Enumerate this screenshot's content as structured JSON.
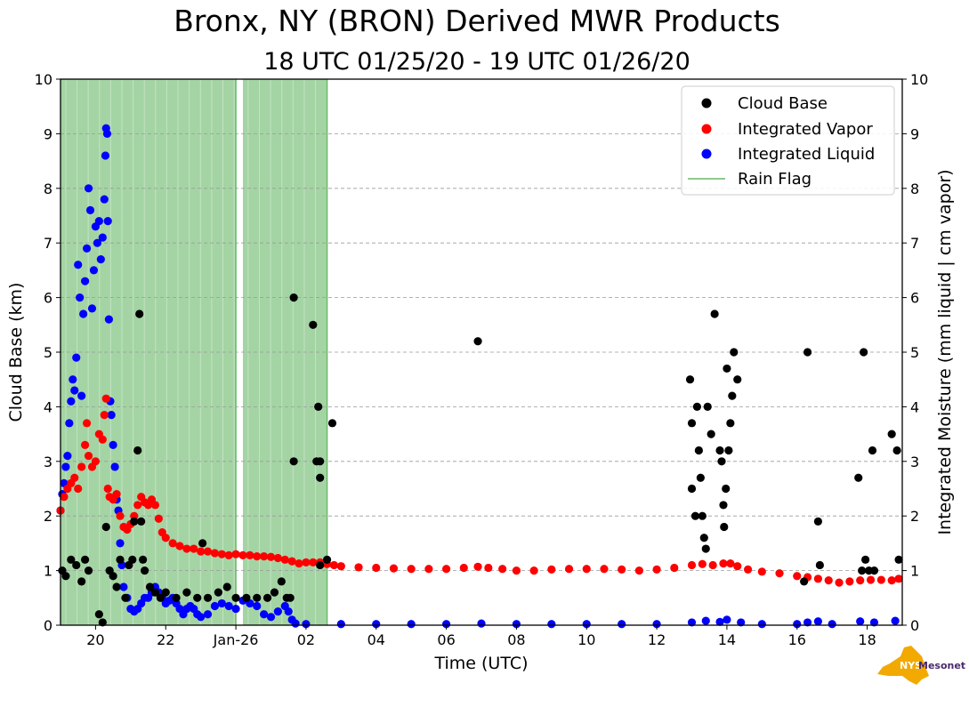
{
  "header": {
    "title": "Bronx, NY (BRON) Derived MWR Products",
    "subtitle": "18 UTC 01/25/20 - 19 UTC 01/26/20"
  },
  "logo": {
    "text_left": "NYS",
    "text_right": "Mesonet",
    "icon": "new-york-state-icon"
  },
  "chart_data": {
    "type": "scatter",
    "xlabel": "Time (UTC)",
    "ylabel": "Cloud Base (km)",
    "ylabel_right": "Integrated Moisture (mm liquid | cm vapor)",
    "x_range_hours": [
      19,
      43
    ],
    "xlim": [
      "2020-01-25 19:00",
      "2020-01-26 19:00"
    ],
    "ylim": [
      0,
      10
    ],
    "ylim_right": [
      0,
      10
    ],
    "grid": "horizontal dashed",
    "legend_position": "top-right",
    "xticks": [
      {
        "h": 20,
        "label": "20"
      },
      {
        "h": 22,
        "label": "22"
      },
      {
        "h": 24,
        "label": "Jan-26"
      },
      {
        "h": 26,
        "label": "02"
      },
      {
        "h": 28,
        "label": "04"
      },
      {
        "h": 30,
        "label": "06"
      },
      {
        "h": 32,
        "label": "08"
      },
      {
        "h": 34,
        "label": "10"
      },
      {
        "h": 36,
        "label": "12"
      },
      {
        "h": 38,
        "label": "14"
      },
      {
        "h": 40,
        "label": "16"
      },
      {
        "h": 42,
        "label": "18"
      }
    ],
    "yticks": [
      "0",
      "1",
      "2",
      "3",
      "4",
      "5",
      "6",
      "7",
      "8",
      "9",
      "10"
    ],
    "rain_flag_intervals": [
      [
        19.0,
        24.0
      ],
      [
        24.2,
        26.6
      ]
    ],
    "series": [
      {
        "name": "Cloud Base",
        "color": "#000000",
        "marker": "circle",
        "points": [
          [
            25.65,
            6.0
          ],
          [
            25.65,
            3.0
          ],
          [
            26.2,
            5.5
          ],
          [
            26.3,
            3.0
          ],
          [
            26.4,
            3.0
          ],
          [
            26.35,
            4.0
          ],
          [
            26.4,
            2.7
          ],
          [
            26.75,
            3.7
          ],
          [
            26.6,
            1.2
          ],
          [
            26.4,
            1.1
          ],
          [
            30.9,
            5.2
          ],
          [
            36.95,
            4.5
          ],
          [
            37.0,
            3.7
          ],
          [
            37.0,
            2.5
          ],
          [
            37.1,
            2.0
          ],
          [
            37.15,
            4.0
          ],
          [
            37.2,
            3.2
          ],
          [
            37.25,
            2.7
          ],
          [
            37.3,
            2.0
          ],
          [
            37.35,
            1.6
          ],
          [
            37.4,
            1.4
          ],
          [
            37.45,
            4.0
          ],
          [
            37.55,
            3.5
          ],
          [
            37.65,
            5.7
          ],
          [
            37.8,
            3.2
          ],
          [
            37.85,
            3.0
          ],
          [
            37.9,
            2.2
          ],
          [
            37.92,
            1.8
          ],
          [
            37.97,
            2.5
          ],
          [
            38.0,
            4.7
          ],
          [
            38.05,
            3.2
          ],
          [
            38.1,
            3.7
          ],
          [
            38.15,
            4.2
          ],
          [
            38.2,
            5.0
          ],
          [
            38.3,
            4.5
          ],
          [
            40.3,
            5.0
          ],
          [
            40.6,
            1.9
          ],
          [
            40.65,
            1.1
          ],
          [
            40.2,
            0.8
          ],
          [
            41.75,
            2.7
          ],
          [
            41.85,
            1.0
          ],
          [
            41.9,
            5.0
          ],
          [
            41.95,
            1.2
          ],
          [
            42.05,
            1.0
          ],
          [
            42.15,
            3.2
          ],
          [
            42.2,
            1.0
          ],
          [
            42.7,
            3.5
          ],
          [
            42.85,
            3.2
          ],
          [
            42.9,
            1.2
          ],
          [
            19.05,
            1.0
          ],
          [
            19.15,
            0.9
          ],
          [
            19.3,
            1.2
          ],
          [
            19.45,
            1.1
          ],
          [
            19.6,
            0.8
          ],
          [
            19.7,
            1.2
          ],
          [
            19.8,
            1.0
          ],
          [
            20.1,
            0.2
          ],
          [
            20.2,
            0.05
          ],
          [
            20.3,
            1.8
          ],
          [
            20.4,
            1.0
          ],
          [
            20.5,
            0.9
          ],
          [
            20.6,
            0.7
          ],
          [
            20.7,
            1.2
          ],
          [
            20.85,
            0.5
          ],
          [
            20.95,
            1.1
          ],
          [
            21.05,
            1.2
          ],
          [
            21.1,
            1.9
          ],
          [
            21.2,
            3.2
          ],
          [
            21.25,
            5.7
          ],
          [
            21.3,
            1.9
          ],
          [
            21.35,
            1.2
          ],
          [
            21.4,
            1.0
          ],
          [
            21.55,
            0.7
          ],
          [
            21.7,
            0.6
          ],
          [
            21.85,
            0.5
          ],
          [
            22.0,
            0.6
          ],
          [
            22.3,
            0.5
          ],
          [
            22.6,
            0.6
          ],
          [
            22.9,
            0.5
          ],
          [
            23.2,
            0.5
          ],
          [
            23.5,
            0.6
          ],
          [
            23.75,
            0.7
          ],
          [
            24.0,
            0.5
          ],
          [
            24.3,
            0.5
          ],
          [
            24.6,
            0.5
          ],
          [
            24.9,
            0.5
          ],
          [
            25.1,
            0.6
          ],
          [
            25.3,
            0.8
          ],
          [
            25.45,
            0.5
          ],
          [
            25.55,
            0.5
          ],
          [
            23.05,
            1.5
          ]
        ]
      },
      {
        "name": "Integrated Vapor",
        "color": "#ff0000",
        "marker": "circle",
        "points": [
          [
            19.0,
            2.1
          ],
          [
            19.1,
            2.35
          ],
          [
            19.2,
            2.5
          ],
          [
            19.3,
            2.6
          ],
          [
            19.4,
            2.7
          ],
          [
            19.5,
            2.5
          ],
          [
            19.6,
            2.9
          ],
          [
            19.7,
            3.3
          ],
          [
            19.75,
            3.7
          ],
          [
            19.8,
            3.1
          ],
          [
            19.9,
            2.9
          ],
          [
            20.0,
            3.0
          ],
          [
            20.1,
            3.5
          ],
          [
            20.2,
            3.4
          ],
          [
            20.25,
            3.85
          ],
          [
            20.3,
            4.15
          ],
          [
            20.35,
            2.5
          ],
          [
            20.4,
            2.35
          ],
          [
            20.5,
            2.3
          ],
          [
            20.6,
            2.4
          ],
          [
            20.7,
            2.0
          ],
          [
            20.8,
            1.8
          ],
          [
            20.9,
            1.75
          ],
          [
            21.0,
            1.85
          ],
          [
            21.1,
            2.0
          ],
          [
            21.2,
            2.2
          ],
          [
            21.3,
            2.35
          ],
          [
            21.4,
            2.25
          ],
          [
            21.5,
            2.2
          ],
          [
            21.6,
            2.3
          ],
          [
            21.7,
            2.2
          ],
          [
            21.8,
            1.95
          ],
          [
            21.9,
            1.7
          ],
          [
            22.0,
            1.6
          ],
          [
            22.2,
            1.5
          ],
          [
            22.4,
            1.45
          ],
          [
            22.6,
            1.4
          ],
          [
            22.8,
            1.4
          ],
          [
            23.0,
            1.35
          ],
          [
            23.2,
            1.35
          ],
          [
            23.4,
            1.32
          ],
          [
            23.6,
            1.3
          ],
          [
            23.8,
            1.28
          ],
          [
            24.0,
            1.3
          ],
          [
            24.2,
            1.28
          ],
          [
            24.4,
            1.28
          ],
          [
            24.6,
            1.26
          ],
          [
            24.8,
            1.26
          ],
          [
            25.0,
            1.25
          ],
          [
            25.2,
            1.23
          ],
          [
            25.4,
            1.2
          ],
          [
            25.6,
            1.17
          ],
          [
            25.8,
            1.13
          ],
          [
            26.0,
            1.15
          ],
          [
            26.2,
            1.15
          ],
          [
            26.4,
            1.15
          ],
          [
            26.6,
            1.12
          ],
          [
            26.8,
            1.1
          ],
          [
            27.0,
            1.08
          ],
          [
            27.5,
            1.06
          ],
          [
            28.0,
            1.05
          ],
          [
            28.5,
            1.04
          ],
          [
            29.0,
            1.03
          ],
          [
            29.5,
            1.03
          ],
          [
            30.0,
            1.03
          ],
          [
            30.5,
            1.05
          ],
          [
            30.9,
            1.07
          ],
          [
            31.2,
            1.05
          ],
          [
            31.6,
            1.03
          ],
          [
            32.0,
            1.0
          ],
          [
            32.5,
            1.0
          ],
          [
            33.0,
            1.02
          ],
          [
            33.5,
            1.03
          ],
          [
            34.0,
            1.03
          ],
          [
            34.5,
            1.03
          ],
          [
            35.0,
            1.02
          ],
          [
            35.5,
            1.0
          ],
          [
            36.0,
            1.02
          ],
          [
            36.5,
            1.05
          ],
          [
            37.0,
            1.1
          ],
          [
            37.3,
            1.12
          ],
          [
            37.6,
            1.1
          ],
          [
            37.9,
            1.13
          ],
          [
            38.1,
            1.13
          ],
          [
            38.3,
            1.08
          ],
          [
            38.6,
            1.02
          ],
          [
            39.0,
            0.98
          ],
          [
            39.5,
            0.95
          ],
          [
            40.0,
            0.9
          ],
          [
            40.3,
            0.88
          ],
          [
            40.6,
            0.85
          ],
          [
            40.9,
            0.82
          ],
          [
            41.2,
            0.78
          ],
          [
            41.5,
            0.8
          ],
          [
            41.8,
            0.82
          ],
          [
            42.1,
            0.83
          ],
          [
            42.4,
            0.83
          ],
          [
            42.7,
            0.82
          ],
          [
            42.9,
            0.85
          ]
        ]
      },
      {
        "name": "Integrated Liquid",
        "color": "#0000ff",
        "marker": "circle",
        "points": [
          [
            19.0,
            2.1
          ],
          [
            19.05,
            2.4
          ],
          [
            19.1,
            2.6
          ],
          [
            19.15,
            2.9
          ],
          [
            19.2,
            3.1
          ],
          [
            19.25,
            3.7
          ],
          [
            19.3,
            4.1
          ],
          [
            19.35,
            4.5
          ],
          [
            19.4,
            4.3
          ],
          [
            19.45,
            4.9
          ],
          [
            19.5,
            6.6
          ],
          [
            19.55,
            6.0
          ],
          [
            19.6,
            4.2
          ],
          [
            19.65,
            5.7
          ],
          [
            19.7,
            6.3
          ],
          [
            19.75,
            6.9
          ],
          [
            19.8,
            8.0
          ],
          [
            19.85,
            7.6
          ],
          [
            19.9,
            5.8
          ],
          [
            19.95,
            6.5
          ],
          [
            20.0,
            7.3
          ],
          [
            20.05,
            7.0
          ],
          [
            20.1,
            7.4
          ],
          [
            20.15,
            6.7
          ],
          [
            20.2,
            7.1
          ],
          [
            20.25,
            7.8
          ],
          [
            20.28,
            8.6
          ],
          [
            20.3,
            9.1
          ],
          [
            20.33,
            9.0
          ],
          [
            20.35,
            7.4
          ],
          [
            20.38,
            5.6
          ],
          [
            20.42,
            4.1
          ],
          [
            20.45,
            3.85
          ],
          [
            20.5,
            3.3
          ],
          [
            20.55,
            2.9
          ],
          [
            20.6,
            2.3
          ],
          [
            20.65,
            2.1
          ],
          [
            20.7,
            1.5
          ],
          [
            20.75,
            1.1
          ],
          [
            20.8,
            0.7
          ],
          [
            20.9,
            0.5
          ],
          [
            21.0,
            0.3
          ],
          [
            21.1,
            0.25
          ],
          [
            21.2,
            0.3
          ],
          [
            21.3,
            0.4
          ],
          [
            21.4,
            0.5
          ],
          [
            21.5,
            0.5
          ],
          [
            21.6,
            0.6
          ],
          [
            21.7,
            0.7
          ],
          [
            21.8,
            0.6
          ],
          [
            21.9,
            0.5
          ],
          [
            22.0,
            0.4
          ],
          [
            22.1,
            0.45
          ],
          [
            22.2,
            0.5
          ],
          [
            22.3,
            0.4
          ],
          [
            22.4,
            0.3
          ],
          [
            22.5,
            0.2
          ],
          [
            22.6,
            0.3
          ],
          [
            22.7,
            0.35
          ],
          [
            22.8,
            0.3
          ],
          [
            22.9,
            0.2
          ],
          [
            23.0,
            0.15
          ],
          [
            23.2,
            0.2
          ],
          [
            23.4,
            0.35
          ],
          [
            23.6,
            0.4
          ],
          [
            23.8,
            0.35
          ],
          [
            24.0,
            0.3
          ],
          [
            24.2,
            0.45
          ],
          [
            24.4,
            0.4
          ],
          [
            24.6,
            0.35
          ],
          [
            24.8,
            0.2
          ],
          [
            25.0,
            0.15
          ],
          [
            25.2,
            0.25
          ],
          [
            25.4,
            0.35
          ],
          [
            25.5,
            0.25
          ],
          [
            25.6,
            0.1
          ],
          [
            25.7,
            0.03
          ],
          [
            26.0,
            0.02
          ],
          [
            27.0,
            0.02
          ],
          [
            28.0,
            0.02
          ],
          [
            29.0,
            0.02
          ],
          [
            30.0,
            0.02
          ],
          [
            31.0,
            0.03
          ],
          [
            32.0,
            0.02
          ],
          [
            33.0,
            0.02
          ],
          [
            34.0,
            0.02
          ],
          [
            35.0,
            0.02
          ],
          [
            36.0,
            0.02
          ],
          [
            37.0,
            0.05
          ],
          [
            37.4,
            0.08
          ],
          [
            37.8,
            0.06
          ],
          [
            38.0,
            0.1
          ],
          [
            38.4,
            0.05
          ],
          [
            39.0,
            0.02
          ],
          [
            40.0,
            0.02
          ],
          [
            40.3,
            0.05
          ],
          [
            40.6,
            0.07
          ],
          [
            41.0,
            0.02
          ],
          [
            41.8,
            0.07
          ],
          [
            42.2,
            0.05
          ],
          [
            42.8,
            0.08
          ]
        ]
      },
      {
        "name": "Rain Flag",
        "color": "#68b868",
        "marker": "line"
      }
    ]
  }
}
